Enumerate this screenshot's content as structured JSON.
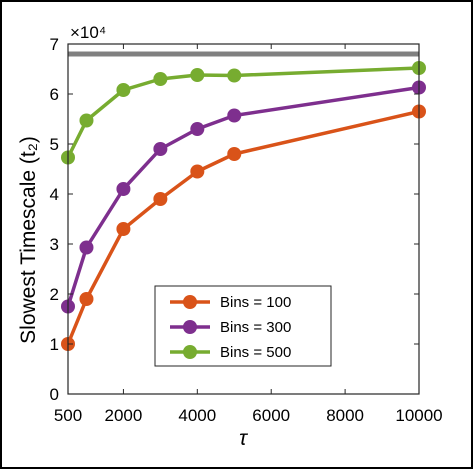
{
  "chart_data": {
    "type": "line",
    "xlabel": "τ",
    "ylabel": "Slowest Timescale (t₂)",
    "y_multiplier_label": "×10⁴",
    "xlim": [
      500,
      10000
    ],
    "ylim": [
      0,
      7
    ],
    "xticks": [
      500,
      2000,
      4000,
      6000,
      8000,
      10000
    ],
    "xtick_labels": [
      "500",
      "2000",
      "4000",
      "6000",
      "8000",
      "10000"
    ],
    "yticks": [
      0,
      1,
      2,
      3,
      4,
      5,
      6,
      7
    ],
    "ytick_labels": [
      "0",
      "1",
      "2",
      "3",
      "4",
      "5",
      "6",
      "7"
    ],
    "grid": false,
    "legend_position": "bottom-right",
    "reference_line": {
      "y": 6.8,
      "color": "#808080"
    },
    "series": [
      {
        "name": "Bins = 100",
        "color": "#D95319",
        "x": [
          500,
          1000,
          2000,
          3000,
          4000,
          5000,
          10000
        ],
        "y": [
          1.0,
          1.9,
          3.3,
          3.9,
          4.45,
          4.8,
          5.65
        ]
      },
      {
        "name": "Bins = 300",
        "color": "#7E2F8E",
        "x": [
          500,
          1000,
          2000,
          3000,
          4000,
          5000,
          10000
        ],
        "y": [
          1.75,
          2.93,
          4.1,
          4.9,
          5.3,
          5.57,
          6.13
        ]
      },
      {
        "name": "Bins = 500",
        "color": "#77AC30",
        "x": [
          500,
          1000,
          2000,
          3000,
          4000,
          5000,
          10000
        ],
        "y": [
          4.73,
          5.47,
          6.08,
          6.3,
          6.38,
          6.37,
          6.52
        ]
      }
    ]
  }
}
